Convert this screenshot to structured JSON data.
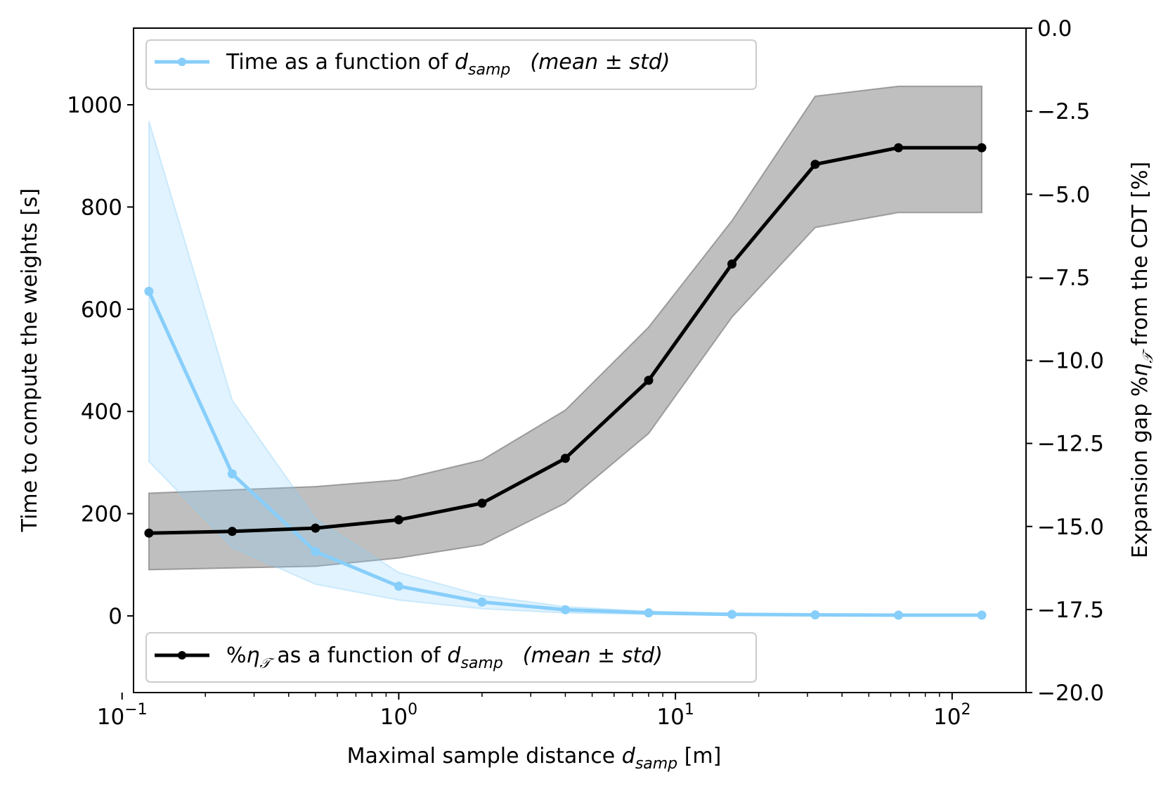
{
  "chart_data": {
    "type": "line",
    "dual_axis": true,
    "x_scale": "log",
    "x": [
      0.125,
      0.25,
      0.5,
      1,
      2,
      4,
      8,
      16,
      32,
      64,
      128
    ],
    "xlim": [
      0.11,
      185
    ],
    "x_ticks": [
      {
        "value": 0.1,
        "base": "10",
        "exp": "−1"
      },
      {
        "value": 1,
        "base": "10",
        "exp": "0"
      },
      {
        "value": 10,
        "base": "10",
        "exp": "1"
      },
      {
        "value": 100,
        "base": "10",
        "exp": "2"
      }
    ],
    "xlabel": {
      "pre": "Maximal sample distance ",
      "var": "d",
      "sub": "samp",
      "post": " [m]"
    },
    "left_axis": {
      "label": "Time to compute the weights [s]",
      "ylim": [
        -150,
        1150
      ],
      "ticks": [
        0,
        200,
        400,
        600,
        800,
        1000
      ],
      "tick_labels": [
        "0",
        "200",
        "400",
        "600",
        "800",
        "1000"
      ]
    },
    "right_axis": {
      "label": {
        "pre": "Expansion gap %",
        "var": "η",
        "sub": "𝒯",
        "post": "  from the CDT [%]"
      },
      "ylim": [
        -20,
        0
      ],
      "ticks": [
        0,
        -2.5,
        -5,
        -7.5,
        -10,
        -12.5,
        -15,
        -17.5,
        -20
      ],
      "tick_labels": [
        "0.0",
        "−2.5",
        "−5.0",
        "−7.5",
        "−10.0",
        "−12.5",
        "−15.0",
        "−17.5",
        "−20.0"
      ]
    },
    "series": [
      {
        "name": "time",
        "axis": "left",
        "color": "#87CEFA",
        "band_color": "#87CEFA",
        "mean": [
          635,
          278,
          126,
          58,
          27,
          12,
          6,
          3,
          2,
          1.5,
          1.5
        ],
        "upper": [
          968,
          422,
          190,
          85,
          40,
          18,
          9,
          5,
          3,
          2.5,
          2.5
        ],
        "lower": [
          302,
          134,
          62,
          31,
          14,
          6,
          3,
          1,
          1,
          0.5,
          0.5
        ],
        "legend": {
          "pre": "Time as a function of ",
          "var": "d",
          "sub": "samp",
          "stat": "(mean ± std)"
        }
      },
      {
        "name": "gap",
        "axis": "right",
        "color": "#000000",
        "band_color": "#808080",
        "mean": [
          -15.2,
          -15.15,
          -15.05,
          -14.8,
          -14.3,
          -12.95,
          -10.6,
          -7.1,
          -4.1,
          -3.6,
          -3.6
        ],
        "upper": [
          -14.0,
          -13.9,
          -13.8,
          -13.6,
          -13.0,
          -11.5,
          -9.0,
          -5.8,
          -2.05,
          -1.75,
          -1.75
        ],
        "lower": [
          -16.3,
          -16.25,
          -16.2,
          -15.95,
          -15.55,
          -14.3,
          -12.2,
          -8.7,
          -6.0,
          -5.55,
          -5.55
        ],
        "legend": {
          "pre": "%",
          "var": "η",
          "sub": "𝒯",
          "mid": "  as a function of ",
          "var2": "d",
          "sub2": "samp",
          "stat": "(mean ± std)"
        }
      }
    ]
  }
}
